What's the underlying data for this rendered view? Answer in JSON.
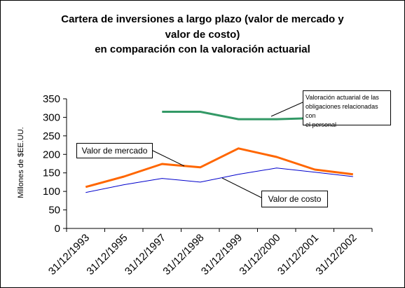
{
  "chart_data": {
    "type": "line",
    "title_lines": [
      "Cartera de inversiones a largo plazo (valor de mercado y",
      "valor de costo)",
      "en comparación con la valoración actuarial"
    ],
    "ylabel": "Millones de $EE.UU.",
    "xlabel": "",
    "ylim": [
      0,
      350
    ],
    "yticks": [
      "0",
      "50",
      "100",
      "150",
      "200",
      "250",
      "300",
      "350"
    ],
    "categories": [
      "31/12/1993",
      "31/12/1995",
      "31/12/1997",
      "31/12/1998",
      "31/12/1999",
      "31/12/2000",
      "31/12/2001",
      "31/12/2002"
    ],
    "grid": false,
    "legend": "none",
    "series": [
      {
        "name": "Valor de mercado",
        "color": "#FF6600",
        "values": [
          112,
          140,
          174,
          165,
          216,
          193,
          159,
          146
        ]
      },
      {
        "name": "Valor de costo",
        "color": "#0000CC",
        "values": [
          97,
          118,
          135,
          125,
          146,
          163,
          152,
          140
        ]
      },
      {
        "name": "Valoración actuarial de las obligaciones relacionadas con el personal",
        "color": "#339966",
        "values": [
          null,
          null,
          315,
          315,
          295,
          295,
          298,
          null
        ]
      }
    ],
    "annotations": {
      "market": "Valor de mercado",
      "cost": "Valor de costo",
      "actuarial_lines": [
        "Valoración actuarial de las",
        "obligaciones relacionadas con",
        "el personal"
      ]
    }
  }
}
